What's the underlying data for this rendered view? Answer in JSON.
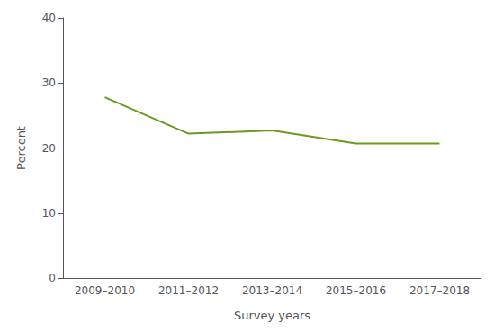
{
  "chart_data": {
    "type": "line",
    "categories": [
      "2009–2010",
      "2011–2012",
      "2013–2014",
      "2015–2016",
      "2017–2018"
    ],
    "values": [
      27.8,
      22.2,
      22.7,
      20.7,
      20.7
    ],
    "color": "#6a9a1f",
    "xlabel": "Survey years",
    "ylabel": "Percent",
    "ylim": [
      0,
      40
    ],
    "yticks": [
      0,
      10,
      20,
      30,
      40
    ],
    "grid": false
  }
}
